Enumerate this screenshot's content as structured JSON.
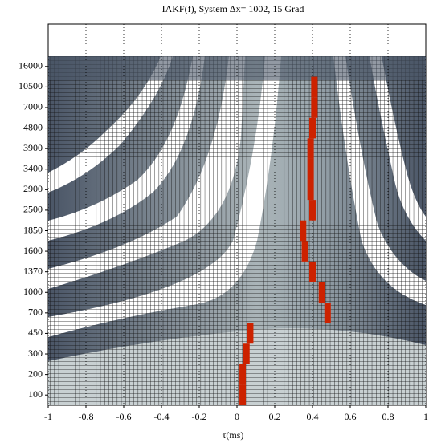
{
  "chart_data": {
    "type": "heatmap",
    "title": "IAKF(f),  System Δx= 1002,   15 Grad",
    "x_label": "τ(ms)",
    "categories": [
      "100",
      "200",
      "300",
      "450",
      "700",
      "1000",
      "1370",
      "1600",
      "1850",
      "2500",
      "2900",
      "3400",
      "3900",
      "4800",
      "7000",
      "10500",
      "16000"
    ],
    "values": [
      0.03,
      0.03,
      0.05,
      0.07,
      0.48,
      0.45,
      0.4,
      0.36,
      0.35,
      0.4,
      0.39,
      0.39,
      0.39,
      0.4,
      0.41,
      0.41,
      null
    ],
    "color": "#cc2200",
    "xlim": [
      -1,
      1
    ],
    "xticks": [
      -1,
      -0.8,
      -0.6,
      -0.4,
      -0.2,
      0,
      0.2,
      0.4,
      0.6,
      0.8,
      1
    ],
    "grid": true
  }
}
